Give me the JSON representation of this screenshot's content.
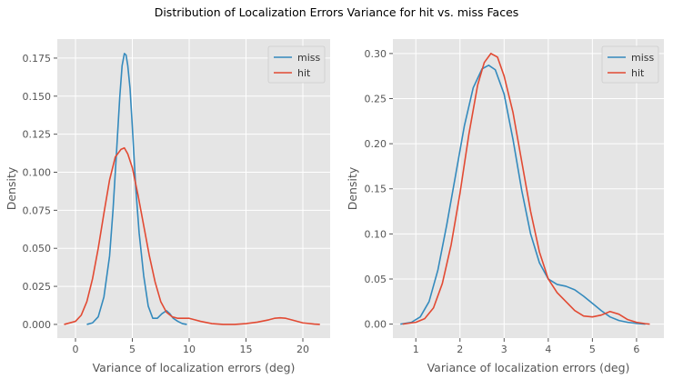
{
  "figure": {
    "suptitle": "Distribution of Localization Errors Variance for hit vs. miss Faces"
  },
  "colors": {
    "axes_bg": "#e5e5e5",
    "grid": "#ffffff",
    "tick_text": "#555555",
    "label_text": "#555555",
    "miss": "#348abd",
    "hit": "#e24a33"
  },
  "chart_data": [
    {
      "type": "line",
      "title": "",
      "xlabel": "Variance of localization errors (deg)",
      "ylabel": "Density",
      "xlim": [
        -1.6,
        22.4
      ],
      "ylim": [
        -0.009,
        0.1875
      ],
      "xticks": [
        0,
        5,
        10,
        15,
        20
      ],
      "xtick_labels": [
        "0",
        "5",
        "10",
        "15",
        "20"
      ],
      "yticks": [
        0.0,
        0.025,
        0.05,
        0.075,
        0.1,
        0.125,
        0.15,
        0.175
      ],
      "ytick_labels": [
        "0.000",
        "0.025",
        "0.050",
        "0.075",
        "0.100",
        "0.125",
        "0.150",
        "0.175"
      ],
      "grid": true,
      "legend": "top-right",
      "series": [
        {
          "name": "miss",
          "color": "#348abd",
          "x": [
            1.0,
            1.5,
            2.0,
            2.5,
            3.0,
            3.3,
            3.6,
            3.9,
            4.1,
            4.3,
            4.45,
            4.6,
            4.8,
            5.0,
            5.3,
            5.6,
            6.0,
            6.4,
            6.8,
            7.2,
            7.6,
            8.0,
            8.3,
            8.6,
            9.0,
            9.4,
            9.8
          ],
          "y": [
            0.0,
            0.001,
            0.005,
            0.018,
            0.045,
            0.075,
            0.112,
            0.15,
            0.17,
            0.178,
            0.177,
            0.17,
            0.155,
            0.13,
            0.09,
            0.06,
            0.032,
            0.012,
            0.004,
            0.004,
            0.007,
            0.009,
            0.007,
            0.004,
            0.002,
            0.0005,
            0.0
          ]
        },
        {
          "name": "hit",
          "color": "#e24a33",
          "x": [
            -1.0,
            0.0,
            0.5,
            1.0,
            1.5,
            2.0,
            2.5,
            3.0,
            3.5,
            4.0,
            4.3,
            4.6,
            5.0,
            5.5,
            6.0,
            6.5,
            7.0,
            7.5,
            8.0,
            8.5,
            9.0,
            9.5,
            10.0,
            10.5,
            11.0,
            12.0,
            13.0,
            14.0,
            15.0,
            16.0,
            17.0,
            17.5,
            18.0,
            18.5,
            19.0,
            20.0,
            21.0,
            21.5
          ],
          "y": [
            0.0,
            0.002,
            0.006,
            0.015,
            0.03,
            0.05,
            0.073,
            0.095,
            0.11,
            0.115,
            0.116,
            0.112,
            0.103,
            0.085,
            0.065,
            0.045,
            0.028,
            0.015,
            0.008,
            0.005,
            0.004,
            0.004,
            0.004,
            0.003,
            0.002,
            0.0005,
            0.0,
            0.0,
            0.0005,
            0.0015,
            0.003,
            0.004,
            0.0043,
            0.004,
            0.003,
            0.001,
            0.0002,
            0.0
          ]
        }
      ]
    },
    {
      "type": "line",
      "title": "",
      "xlabel": "Variance of localization errors (deg)",
      "ylabel": "Density",
      "xlim": [
        0.48,
        6.62
      ],
      "ylim": [
        -0.0155,
        0.316
      ],
      "xticks": [
        1,
        2,
        3,
        4,
        5,
        6
      ],
      "xtick_labels": [
        "1",
        "2",
        "3",
        "4",
        "5",
        "6"
      ],
      "yticks": [
        0.0,
        0.05,
        0.1,
        0.15,
        0.2,
        0.25,
        0.3
      ],
      "ytick_labels": [
        "0.00",
        "0.05",
        "0.10",
        "0.15",
        "0.20",
        "0.25",
        "0.30"
      ],
      "grid": true,
      "legend": "top-right",
      "series": [
        {
          "name": "miss",
          "color": "#348abd",
          "x": [
            0.65,
            0.9,
            1.1,
            1.3,
            1.5,
            1.7,
            1.9,
            2.1,
            2.3,
            2.5,
            2.65,
            2.8,
            3.0,
            3.2,
            3.4,
            3.6,
            3.8,
            4.0,
            4.2,
            4.4,
            4.6,
            4.8,
            5.0,
            5.2,
            5.4,
            5.6,
            5.8,
            6.0,
            6.2
          ],
          "y": [
            0.0,
            0.002,
            0.008,
            0.025,
            0.06,
            0.11,
            0.165,
            0.22,
            0.262,
            0.283,
            0.287,
            0.282,
            0.255,
            0.205,
            0.148,
            0.1,
            0.068,
            0.05,
            0.044,
            0.042,
            0.038,
            0.031,
            0.023,
            0.015,
            0.008,
            0.004,
            0.002,
            0.0008,
            0.0
          ]
        },
        {
          "name": "hit",
          "color": "#e24a33",
          "x": [
            0.7,
            1.0,
            1.2,
            1.4,
            1.6,
            1.8,
            2.0,
            2.2,
            2.4,
            2.55,
            2.7,
            2.85,
            3.0,
            3.2,
            3.4,
            3.6,
            3.8,
            4.0,
            4.2,
            4.4,
            4.6,
            4.8,
            5.0,
            5.2,
            5.4,
            5.6,
            5.8,
            6.0,
            6.2,
            6.3
          ],
          "y": [
            0.0,
            0.002,
            0.006,
            0.018,
            0.045,
            0.088,
            0.145,
            0.21,
            0.265,
            0.29,
            0.3,
            0.296,
            0.275,
            0.235,
            0.18,
            0.125,
            0.08,
            0.05,
            0.035,
            0.025,
            0.015,
            0.009,
            0.008,
            0.01,
            0.014,
            0.011,
            0.005,
            0.002,
            0.0005,
            0.0
          ]
        }
      ]
    }
  ]
}
